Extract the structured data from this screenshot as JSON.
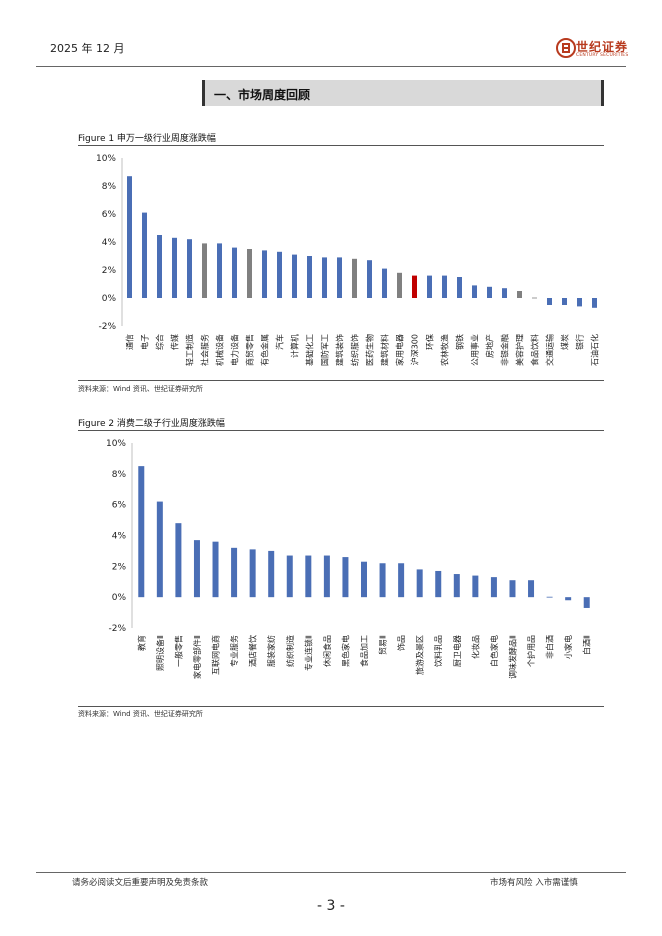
{
  "header": {
    "date": "2025 年 12 月",
    "logo_text": "世纪证券",
    "logo_sub": "CENTURY SECURITIES"
  },
  "section": {
    "title": "一、市场周度回顾"
  },
  "colors": {
    "bar": "#4a6eb5",
    "bar_gray": "#808080",
    "bar_highlight": "#c00000"
  },
  "figure1": {
    "title": "Figure 1  申万一级行业周度涨跌幅",
    "source": "资料来源：Wind 资讯、世纪证券研究所"
  },
  "figure2": {
    "title": "Figure 2 消费二级子行业周度涨跌幅",
    "source": "资料来源：Wind 资讯、世纪证券研究所"
  },
  "chart_data": [
    {
      "type": "bar",
      "ylim": [
        -2,
        10
      ],
      "yticks": [
        "-2%",
        "0%",
        "2%",
        "4%",
        "6%",
        "8%",
        "10%"
      ],
      "ytick_values": [
        -2,
        0,
        2,
        4,
        6,
        8,
        10
      ],
      "categories": [
        "通信",
        "电子",
        "综合",
        "传媒",
        "轻工制造",
        "社会服务",
        "机械设备",
        "电力设备",
        "商贸零售",
        "有色金属",
        "汽车",
        "计算机",
        "基础化工",
        "国防军工",
        "建筑装饰",
        "纺织服饰",
        "医药生物",
        "建筑材料",
        "家用电器",
        "沪深300",
        "环保",
        "农林牧渔",
        "钢铁",
        "公用事业",
        "房地产",
        "非银金融",
        "美容护理",
        "食品饮料",
        "交通运输",
        "煤炭",
        "银行",
        "石油石化"
      ],
      "values": [
        8.7,
        6.1,
        4.5,
        4.3,
        4.2,
        3.9,
        3.9,
        3.6,
        3.5,
        3.4,
        3.3,
        3.1,
        3.0,
        2.9,
        2.9,
        2.8,
        2.7,
        2.1,
        1.8,
        1.6,
        1.6,
        1.6,
        1.5,
        0.9,
        0.8,
        0.7,
        0.5,
        0.0,
        -0.5,
        -0.5,
        -0.6,
        -0.7
      ],
      "bar_colors": [
        "#4a6eb5",
        "#4a6eb5",
        "#4a6eb5",
        "#4a6eb5",
        "#4a6eb5",
        "#808080",
        "#4a6eb5",
        "#4a6eb5",
        "#808080",
        "#4a6eb5",
        "#4a6eb5",
        "#4a6eb5",
        "#4a6eb5",
        "#4a6eb5",
        "#4a6eb5",
        "#808080",
        "#4a6eb5",
        "#4a6eb5",
        "#808080",
        "#c00000",
        "#4a6eb5",
        "#4a6eb5",
        "#4a6eb5",
        "#4a6eb5",
        "#4a6eb5",
        "#4a6eb5",
        "#808080",
        "#808080",
        "#4a6eb5",
        "#4a6eb5",
        "#4a6eb5",
        "#4a6eb5"
      ]
    },
    {
      "type": "bar",
      "ylim": [
        -2,
        10
      ],
      "yticks": [
        "-2%",
        "0%",
        "2%",
        "4%",
        "6%",
        "8%",
        "10%"
      ],
      "ytick_values": [
        -2,
        0,
        2,
        4,
        6,
        8,
        10
      ],
      "categories": [
        "教育",
        "照明设备Ⅱ",
        "一般零售",
        "家电零部件Ⅱ",
        "互联网电商",
        "专业服务",
        "酒店餐饮",
        "服装家纺",
        "纺织制造",
        "专业连锁Ⅱ",
        "休闲食品",
        "黑色家电",
        "食品加工",
        "贸易Ⅱ",
        "饰品",
        "旅游及景区",
        "饮料乳品",
        "厨卫电器",
        "化妆品",
        "白色家电",
        "调味发酵品Ⅱ",
        "个护用品",
        "非白酒",
        "小家电",
        "白酒Ⅱ"
      ],
      "values": [
        8.5,
        6.2,
        4.8,
        3.7,
        3.6,
        3.2,
        3.1,
        3.0,
        2.7,
        2.7,
        2.7,
        2.6,
        2.3,
        2.2,
        2.2,
        1.8,
        1.7,
        1.5,
        1.4,
        1.3,
        1.1,
        1.1,
        0.0,
        -0.2,
        -0.7
      ],
      "bar_colors": [
        "#4a6eb5"
      ]
    }
  ],
  "footer": {
    "left": "请务必阅读文后重要声明及免责条款",
    "right": "市场有风险  入市需谨慎",
    "page": "- 3 -"
  }
}
